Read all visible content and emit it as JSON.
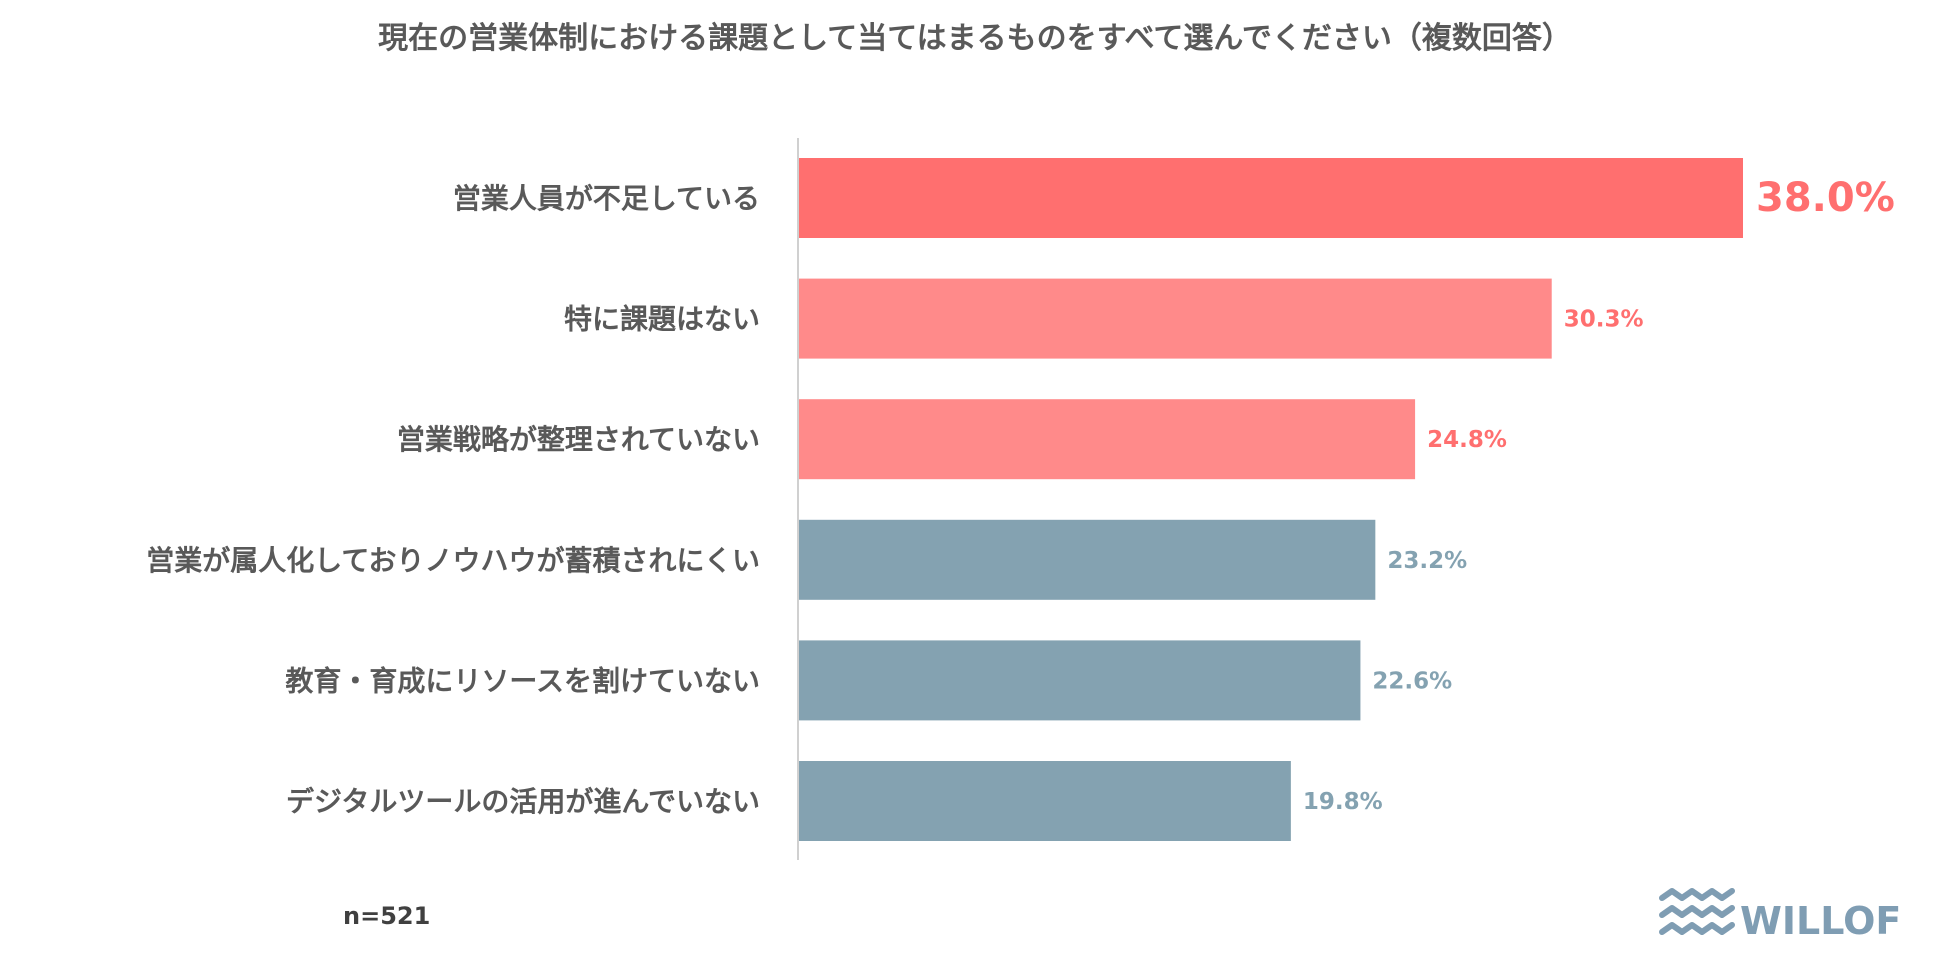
{
  "chart_data": {
    "type": "bar",
    "orientation": "horizontal",
    "title": "現在の営業体制における課題として当てはまるものをすべて選んでください（複数回答）",
    "categories": [
      "営業人員が不足している",
      "特に課題はない",
      "営業戦略が整理されていない",
      "営業が属人化しておりノウハウが蓄積されにくい",
      "教育・育成にリソースを割けていない",
      "デジタルツールの活用が進んでいない"
    ],
    "values": [
      38.0,
      30.3,
      24.8,
      23.2,
      22.6,
      19.8
    ],
    "value_labels": [
      "38.0%",
      "30.3%",
      "24.8%",
      "23.2%",
      "22.6%",
      "19.8%"
    ],
    "xlim": [
      0,
      38.0
    ],
    "unit": "%",
    "grid": false,
    "legend": "none",
    "colors": {
      "top": "#ff6f6f",
      "highlight": "#ff8a8a",
      "other": "#84a2b1",
      "highlight_count": 3
    }
  },
  "note": "n=521",
  "logo": {
    "text": "WILLOF",
    "icon": "waves-icon",
    "color": "#7f9db3"
  }
}
